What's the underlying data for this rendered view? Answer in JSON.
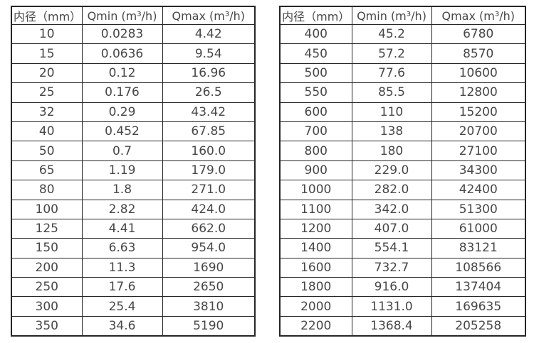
{
  "colors": {
    "border": "#262626",
    "text": "#474747",
    "background": "#ffffff"
  },
  "tables": [
    {
      "name": "small-diameter-flow-spec",
      "headers": [
        "内径（mm）",
        "Qmin (m³/h)",
        "Qmax (m³/h)"
      ],
      "rows": [
        [
          "10",
          "0.0283",
          "4.42"
        ],
        [
          "15",
          "0.0636",
          "9.54"
        ],
        [
          "20",
          "0.12",
          "16.96"
        ],
        [
          "25",
          "0.176",
          "26.5"
        ],
        [
          "32",
          "0.29",
          "43.42"
        ],
        [
          "40",
          "0.452",
          "67.85"
        ],
        [
          "50",
          "0.7",
          "160.0"
        ],
        [
          "65",
          "1.19",
          "179.0"
        ],
        [
          "80",
          "1.8",
          "271.0"
        ],
        [
          "100",
          "2.82",
          "424.0"
        ],
        [
          "125",
          "4.41",
          "662.0"
        ],
        [
          "150",
          "6.63",
          "954.0"
        ],
        [
          "200",
          "11.3",
          "1690"
        ],
        [
          "250",
          "17.6",
          "2650"
        ],
        [
          "300",
          "25.4",
          "3810"
        ],
        [
          "350",
          "34.6",
          "5190"
        ]
      ]
    },
    {
      "name": "large-diameter-flow-spec",
      "headers": [
        "内径（mm）",
        "Qmin (m³/h)",
        "Qmax (m³/h)"
      ],
      "rows": [
        [
          "400",
          "45.2",
          "6780"
        ],
        [
          "450",
          "57.2",
          "8570"
        ],
        [
          "500",
          "77.6",
          "10600"
        ],
        [
          "550",
          "85.5",
          "12800"
        ],
        [
          "600",
          "110",
          "15200"
        ],
        [
          "700",
          "138",
          "20700"
        ],
        [
          "800",
          "180",
          "27100"
        ],
        [
          "900",
          "229.0",
          "34300"
        ],
        [
          "1000",
          "282.0",
          "42400"
        ],
        [
          "1100",
          "342.0",
          "51300"
        ],
        [
          "1200",
          "407.0",
          "61000"
        ],
        [
          "1400",
          "554.1",
          "83121"
        ],
        [
          "1600",
          "732.7",
          "108566"
        ],
        [
          "1800",
          "916.0",
          "137404"
        ],
        [
          "2000",
          "1131.0",
          "169635"
        ],
        [
          "2200",
          "1368.4",
          "205258"
        ]
      ]
    }
  ]
}
